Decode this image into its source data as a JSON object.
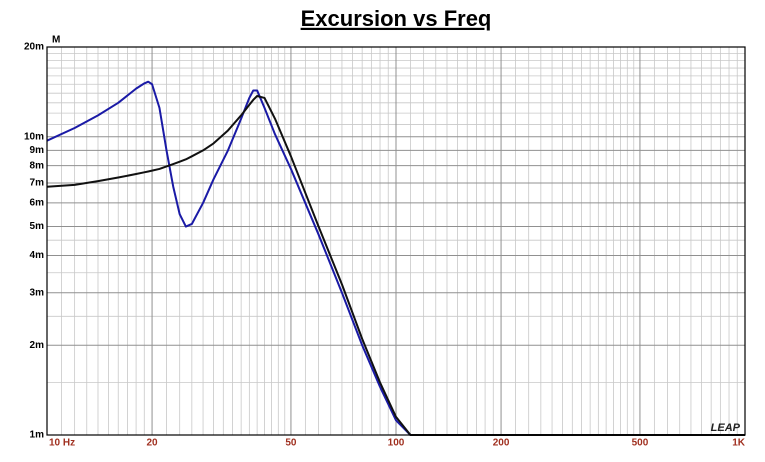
{
  "chart_data": {
    "type": "line",
    "title": "Excursion vs Freq",
    "y_unit": "M",
    "watermark": "LEAP",
    "log_x": true,
    "log_y": true,
    "grid": true,
    "xlim": [
      10,
      1000
    ],
    "ylim": [
      0.001,
      0.02
    ],
    "xticks": [
      {
        "value": 10,
        "label": "10 Hz"
      },
      20,
      50,
      100,
      200,
      500,
      {
        "value": 1000,
        "label": "1K"
      }
    ],
    "yticks": [
      {
        "value": 0.02,
        "label": "20m"
      },
      {
        "value": 0.01,
        "label": "10m"
      },
      {
        "value": 0.009,
        "label": "9m"
      },
      {
        "value": 0.008,
        "label": "8m"
      },
      {
        "value": 0.007,
        "label": "7m"
      },
      {
        "value": 0.006,
        "label": "6m"
      },
      {
        "value": 0.005,
        "label": "5m"
      },
      {
        "value": 0.004,
        "label": "4m"
      },
      {
        "value": 0.003,
        "label": "3m"
      },
      {
        "value": 0.002,
        "label": "2m"
      },
      {
        "value": 0.001,
        "label": "1m"
      }
    ],
    "xgrid": [
      11,
      12,
      13,
      14,
      15,
      16,
      17,
      18,
      19,
      22,
      24,
      26,
      28,
      30,
      32,
      34,
      36,
      38,
      40,
      42,
      44,
      46,
      48,
      55,
      60,
      65,
      70,
      75,
      80,
      85,
      90,
      95,
      110,
      120,
      130,
      140,
      150,
      160,
      170,
      180,
      190,
      220,
      240,
      260,
      280,
      300,
      320,
      340,
      360,
      380,
      400,
      420,
      440,
      460,
      480,
      550,
      600,
      650,
      700,
      750,
      800,
      850,
      900,
      950
    ],
    "ygrid": [
      0.011,
      0.012,
      0.013,
      0.014,
      0.015,
      0.016,
      0.017,
      0.018,
      0.019,
      0.0015,
      0.0025,
      0.0035,
      0.0045
    ],
    "x": [
      10,
      12,
      14,
      16,
      18,
      19,
      19.5,
      20,
      21,
      22,
      23,
      24,
      25,
      26,
      28,
      30,
      33,
      36,
      38,
      39,
      40,
      42,
      45,
      50,
      60,
      70,
      80,
      90,
      100,
      110,
      200,
      500,
      1000
    ],
    "series": [
      {
        "color": "#1a1aa6",
        "values": [
          0.0097,
          0.0107,
          0.0118,
          0.013,
          0.0145,
          0.0151,
          0.0153,
          0.015,
          0.0125,
          0.009,
          0.0068,
          0.0055,
          0.005,
          0.0051,
          0.006,
          0.0072,
          0.009,
          0.0115,
          0.0135,
          0.0143,
          0.0143,
          0.0125,
          0.0102,
          0.0078,
          0.0047,
          0.003,
          0.002,
          0.00145,
          0.00112,
          0.001,
          0.001,
          0.001,
          0.001
        ]
      },
      {
        "color": "#111111",
        "values": [
          0.0068,
          0.0069,
          0.0071,
          0.0073,
          0.0075,
          0.0076,
          0.00765,
          0.0077,
          0.0078,
          0.00795,
          0.0081,
          0.00825,
          0.0084,
          0.0086,
          0.009,
          0.0095,
          0.0105,
          0.0118,
          0.0128,
          0.0133,
          0.0137,
          0.0135,
          0.0115,
          0.0086,
          0.005,
          0.0032,
          0.0021,
          0.0015,
          0.00115,
          0.001,
          0.001,
          0.001,
          0.001
        ]
      }
    ]
  }
}
